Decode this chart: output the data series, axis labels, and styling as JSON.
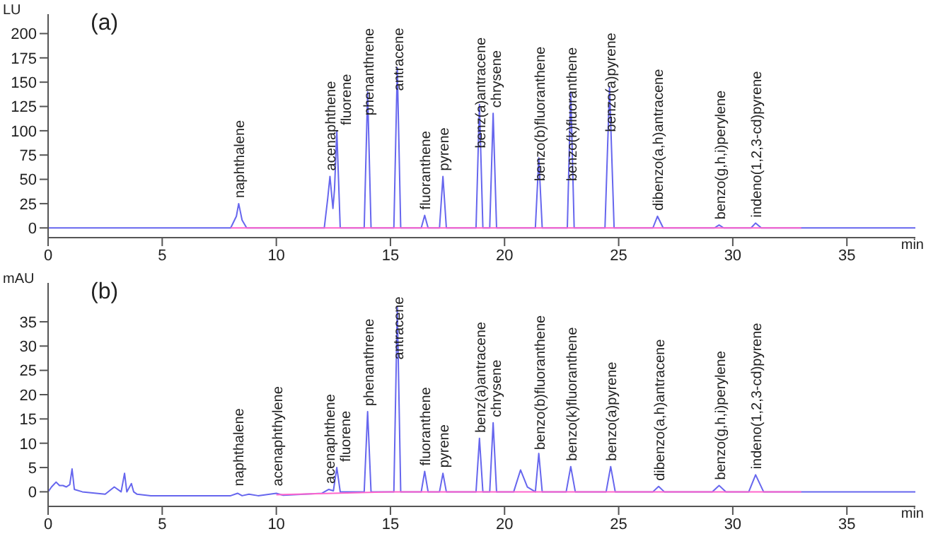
{
  "chart_data": [
    {
      "type": "line",
      "title": "(a)",
      "xlabel": "min",
      "ylabel": "LU",
      "xlim": [
        0,
        38
      ],
      "xticks": [
        0,
        5,
        10,
        15,
        20,
        25,
        30,
        35
      ],
      "ylim": [
        -10,
        220
      ],
      "yticks": [
        0,
        25,
        50,
        75,
        100,
        125,
        150,
        175,
        200
      ],
      "marker": "none",
      "line_style": "solid",
      "grid": false,
      "series": [
        {
          "color": "#6666ee",
          "x": [
            0,
            8.0,
            8.25,
            8.35,
            8.5,
            8.7,
            12.1,
            12.25,
            12.35,
            12.48,
            12.55,
            12.65,
            12.8,
            13.85,
            14.0,
            14.15,
            15.15,
            15.3,
            15.45,
            16.35,
            16.5,
            16.65,
            17.15,
            17.3,
            17.45,
            18.75,
            18.9,
            19.05,
            19.35,
            19.5,
            19.65,
            21.35,
            21.5,
            21.65,
            22.75,
            22.9,
            23.05,
            24.4,
            24.6,
            24.8,
            26.5,
            26.7,
            26.95,
            29.2,
            29.4,
            29.6,
            30.8,
            31.0,
            31.25,
            38
          ],
          "values": [
            0,
            0,
            12,
            25,
            8,
            0,
            0,
            30,
            53,
            20,
            40,
            100,
            0,
            0,
            140,
            0,
            0,
            165,
            0,
            0,
            13,
            0,
            0,
            53,
            0,
            0,
            127,
            0,
            0,
            118,
            0,
            0,
            72,
            0,
            0,
            140,
            0,
            0,
            145,
            0,
            0,
            12,
            0,
            0,
            3,
            0,
            0,
            5,
            0,
            0
          ]
        },
        {
          "color": "#ff66cc",
          "x": [
            8,
            33
          ],
          "values": [
            0,
            0
          ]
        }
      ],
      "annotations": [
        {
          "text": "naphthalene",
          "x": 8.35,
          "y": 25
        },
        {
          "text": "acenaphthene",
          "x": 12.35,
          "y": 53
        },
        {
          "text": "fluorene",
          "x": 12.65,
          "y": 100
        },
        {
          "text": "phenanthrene",
          "x": 14.0,
          "y": 140
        },
        {
          "text": "antracene",
          "x": 15.3,
          "y": 165
        },
        {
          "text": "fluoranthene",
          "x": 16.5,
          "y": 13
        },
        {
          "text": "pyrene",
          "x": 17.3,
          "y": 53
        },
        {
          "text": "benz(a)antracene",
          "x": 18.9,
          "y": 127
        },
        {
          "text": "chrysene",
          "x": 19.5,
          "y": 118
        },
        {
          "text": "benzo(b)fluoranthene",
          "x": 21.5,
          "y": 72
        },
        {
          "text": "benzo(k)fluoranthene",
          "x": 22.9,
          "y": 140
        },
        {
          "text": "benzo(a)pyrene",
          "x": 24.6,
          "y": 145
        },
        {
          "text": "dibenzo(a,h)antracene",
          "x": 26.7,
          "y": 12
        },
        {
          "text": "benzo(g,h,i)perylene",
          "x": 29.4,
          "y": 3
        },
        {
          "text": "indeno(1,2,3-cd)pyrene",
          "x": 31.0,
          "y": 5
        }
      ]
    },
    {
      "type": "line",
      "title": "(b)",
      "xlabel": "min",
      "ylabel": "mAU",
      "xlim": [
        0,
        38
      ],
      "xticks": [
        0,
        5,
        10,
        15,
        20,
        25,
        30,
        35
      ],
      "ylim": [
        -3,
        43
      ],
      "yticks": [
        0,
        5,
        10,
        15,
        20,
        25,
        30,
        35
      ],
      "marker": "none",
      "line_style": "solid",
      "grid": false,
      "series": [
        {
          "color": "#6666ee",
          "x": [
            0,
            0.15,
            0.35,
            0.5,
            0.65,
            0.8,
            0.95,
            1.05,
            1.15,
            1.5,
            2.5,
            2.9,
            3.2,
            3.35,
            3.45,
            3.65,
            3.75,
            3.9,
            4.5,
            5.5,
            8.0,
            8.3,
            8.5,
            8.8,
            9.2,
            10.0,
            10.3,
            12.0,
            12.3,
            12.5,
            12.65,
            12.8,
            13.85,
            14.0,
            14.15,
            15.15,
            15.3,
            15.45,
            16.35,
            16.5,
            16.65,
            17.15,
            17.3,
            17.45,
            18.75,
            18.9,
            19.05,
            19.35,
            19.5,
            19.65,
            20.4,
            20.7,
            21.0,
            21.35,
            21.5,
            21.65,
            22.7,
            22.9,
            23.1,
            24.45,
            24.65,
            24.85,
            26.5,
            26.75,
            27.0,
            29.1,
            29.4,
            29.7,
            30.7,
            31.0,
            31.35,
            33,
            38
          ],
          "values": [
            0,
            1,
            2,
            1.3,
            1.3,
            1,
            1.5,
            4.7,
            0.5,
            0,
            -0.5,
            1,
            0,
            3.8,
            0,
            1.7,
            0,
            -0.5,
            -0.8,
            -0.8,
            -0.8,
            -0.3,
            -0.8,
            -0.5,
            -0.8,
            -0.3,
            -0.7,
            -0.3,
            0.5,
            0.2,
            5,
            0,
            0,
            16.5,
            0,
            0,
            38,
            0,
            0,
            4.2,
            0,
            0,
            3.8,
            0,
            0,
            11,
            0,
            0,
            14.2,
            0,
            0,
            4.5,
            1,
            0,
            7.9,
            0,
            0,
            5.2,
            0,
            0,
            5.2,
            0,
            0,
            1.1,
            0,
            0,
            1.3,
            0,
            0,
            3.5,
            0,
            0,
            0
          ]
        },
        {
          "color": "#ff66cc",
          "x": [
            10,
            15,
            33
          ],
          "values": [
            -0.6,
            0,
            0
          ]
        }
      ],
      "annotations": [
        {
          "text": "naphthalene",
          "x": 8.3,
          "y": 0
        },
        {
          "text": "acenaphthylene",
          "x": 10.0,
          "y": 0
        },
        {
          "text": "acenaphthene",
          "x": 12.3,
          "y": 0.5
        },
        {
          "text": "fluorene",
          "x": 12.65,
          "y": 5
        },
        {
          "text": "phenanthrene",
          "x": 14.0,
          "y": 16.5
        },
        {
          "text": "antracene",
          "x": 15.3,
          "y": 38
        },
        {
          "text": "fluoranthene",
          "x": 16.5,
          "y": 4.2
        },
        {
          "text": "pyrene",
          "x": 17.3,
          "y": 3.8
        },
        {
          "text": "benz(a)antracene",
          "x": 18.9,
          "y": 11
        },
        {
          "text": "chrysene",
          "x": 19.5,
          "y": 14.2
        },
        {
          "text": "benzo(b)fluoranthene",
          "x": 21.5,
          "y": 7.9
        },
        {
          "text": "benzo(k)fluoranthene",
          "x": 22.9,
          "y": 5.2
        },
        {
          "text": "benzo(a)pyrene",
          "x": 24.65,
          "y": 5.2
        },
        {
          "text": "dibenzo(a,h)antracene",
          "x": 26.75,
          "y": 1.1
        },
        {
          "text": "benzo(g,h,i)perylene",
          "x": 29.4,
          "y": 1.3
        },
        {
          "text": "indeno(1,2,3-cd)pyrene",
          "x": 31.0,
          "y": 3.5
        }
      ]
    }
  ]
}
